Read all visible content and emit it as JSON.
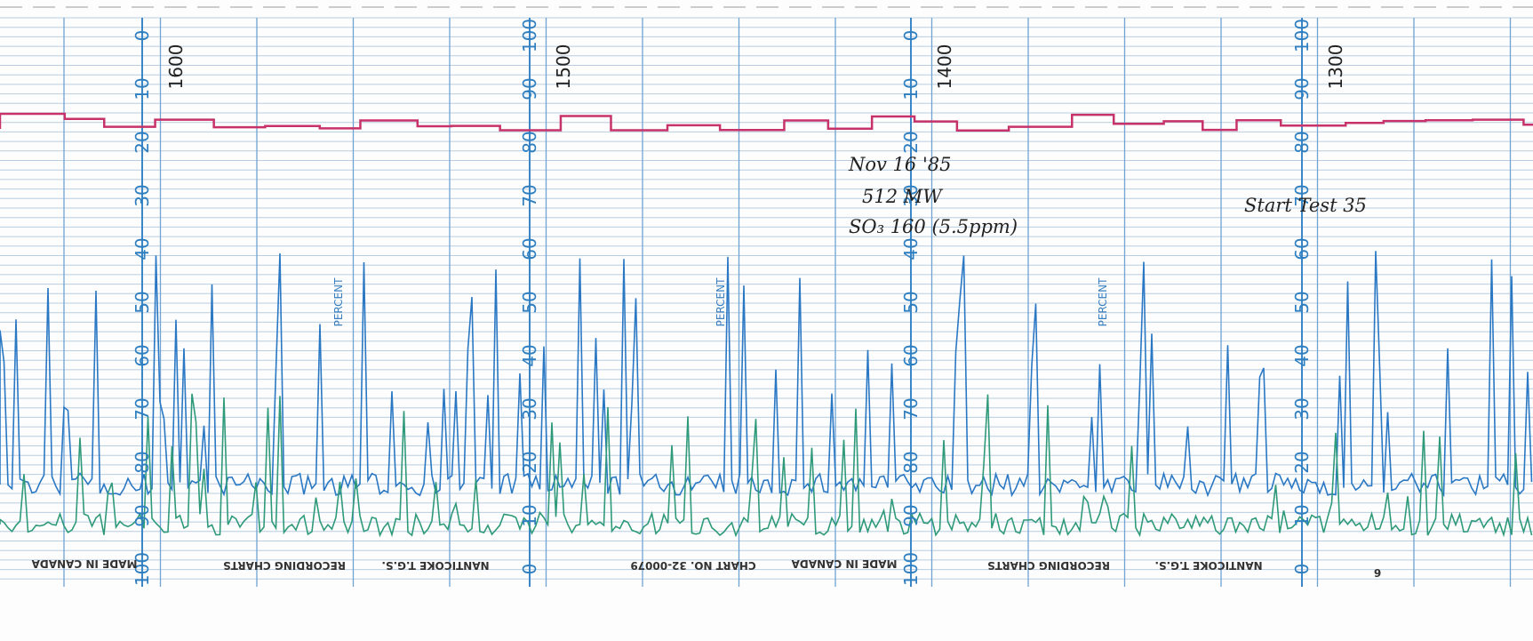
{
  "scales": [
    {
      "time": "1600",
      "labels": [
        "0",
        "10",
        "20",
        "30",
        "40",
        "50",
        "60",
        "70",
        "80",
        "90",
        "100"
      ]
    },
    {
      "time": "1500",
      "labels": [
        "100",
        "90",
        "80",
        "70",
        "60",
        "50",
        "40",
        "30",
        "20",
        "10",
        "0"
      ]
    },
    {
      "time": "1400",
      "labels": [
        "0",
        "10",
        "20",
        "30",
        "40",
        "50",
        "60",
        "70",
        "80",
        "90",
        "100"
      ]
    },
    {
      "time": "1300",
      "labels": [
        "100",
        "90",
        "80",
        "70",
        "60",
        "50",
        "40",
        "30",
        "20",
        "10",
        "0"
      ]
    }
  ],
  "percent": [
    "PERCENT",
    "PERCENT",
    "PERCENT"
  ],
  "notes": {
    "date": "Nov 16 '85",
    "load": "512 MW",
    "so3": "SO₃  160  (5.5ppm)",
    "test": "Start Test 35"
  },
  "footer": {
    "made": [
      "MADE IN CANADA",
      "MADE IN CANADA"
    ],
    "brand": [
      "RECORDING CHARTS",
      "RECORDING CHARTS"
    ],
    "station": [
      "NANTICOKE T.G.S.",
      "NANTICOKE T.G.S."
    ],
    "chart_no": "CHART NO. 32-00079",
    "page": "6"
  }
}
